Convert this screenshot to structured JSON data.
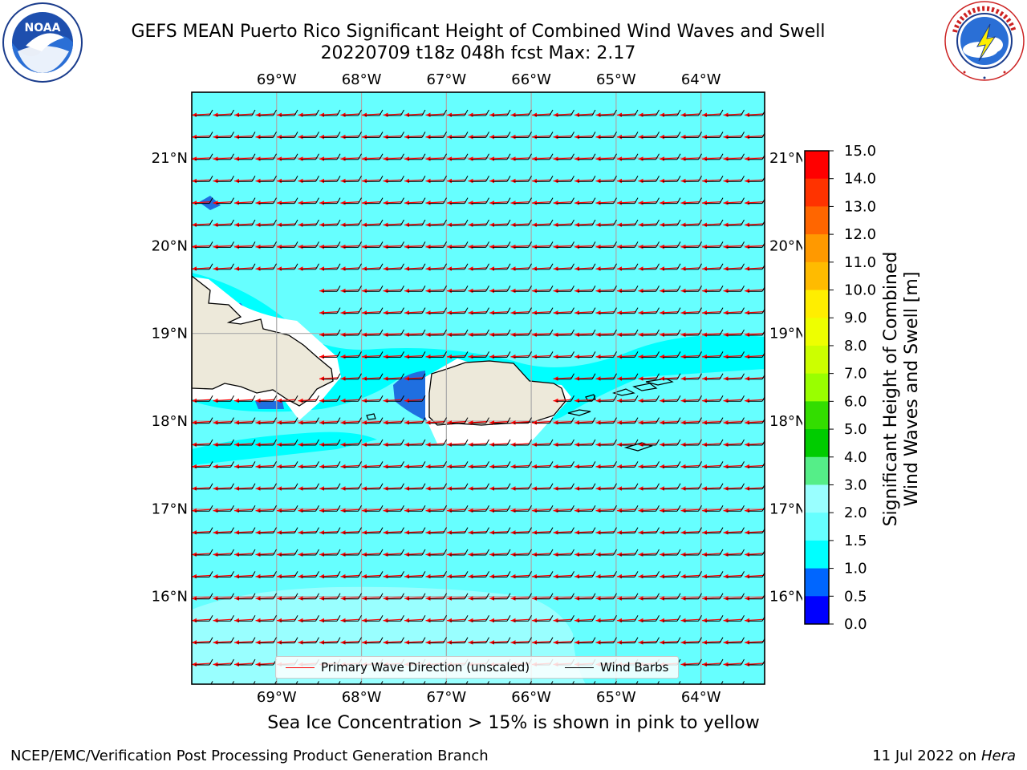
{
  "header": {
    "title_line1": "GEFS MEAN Puerto Rico Significant Height of Combined Wind Waves and Swell",
    "title_line2": "20220709 t18z 048h fcst   Max: 2.17"
  },
  "logos": {
    "left": {
      "name": "noaa-logo",
      "text": "NOAA",
      "ring_text": "NATIONAL OCEANIC AND ATMOSPHERIC ADMINISTRATION · U.S. DEPARTMENT OF COMMERCE"
    },
    "right": {
      "name": "nws-logo",
      "ring_text": "NATIONAL WEATHER SERVICE"
    }
  },
  "map": {
    "lon_ticks": [
      "69°W",
      "68°W",
      "67°W",
      "66°W",
      "65°W",
      "64°W"
    ],
    "lat_ticks": [
      "21°N",
      "20°N",
      "19°N",
      "18°N",
      "17°N",
      "16°N"
    ],
    "lon_values": [
      -69,
      -68,
      -67,
      -66,
      -65,
      -64
    ],
    "lat_values": [
      21,
      20,
      19,
      18,
      17,
      16
    ],
    "lon_range": [
      -70.0,
      -63.25
    ],
    "lat_range": [
      15.0,
      21.75
    ],
    "ocean_color": "#66ffff",
    "land_color": "#ede9da",
    "arrow_color": "#ff0000",
    "barb_color": "#000000",
    "grid_color": "#aaaaaa",
    "wave_direction": "westward",
    "legend": {
      "wave_label": "Primary Wave Direction (unscaled)",
      "barb_label": "Wind Barbs"
    }
  },
  "colorbar": {
    "levels": [
      "15.0",
      "14.0",
      "13.0",
      "12.0",
      "11.0",
      "10.0",
      "9.0",
      "8.0",
      "7.0",
      "6.0",
      "5.0",
      "4.0",
      "3.0",
      "2.0",
      "1.5",
      "1.0",
      "0.5",
      "0.0"
    ],
    "colors": [
      "#ff0000",
      "#ff3300",
      "#ff6600",
      "#ff9900",
      "#ffbb00",
      "#ffee00",
      "#eeff00",
      "#ccff00",
      "#99ff00",
      "#33dd00",
      "#00cc00",
      "#55ee88",
      "#99ffff",
      "#66ffff",
      "#00ffff",
      "#0066ff",
      "#0000ff"
    ],
    "label": "Significant Height of Combined\nWind Waves and Swell [m]"
  },
  "footer": {
    "note": "Sea Ice Concentration > 15% is shown in pink to yellow",
    "credit_left": "NCEP/EMC/Verification Post Processing Product Generation Branch",
    "credit_right_date": "11 Jul 2022 on ",
    "credit_right_host": "Hera"
  }
}
